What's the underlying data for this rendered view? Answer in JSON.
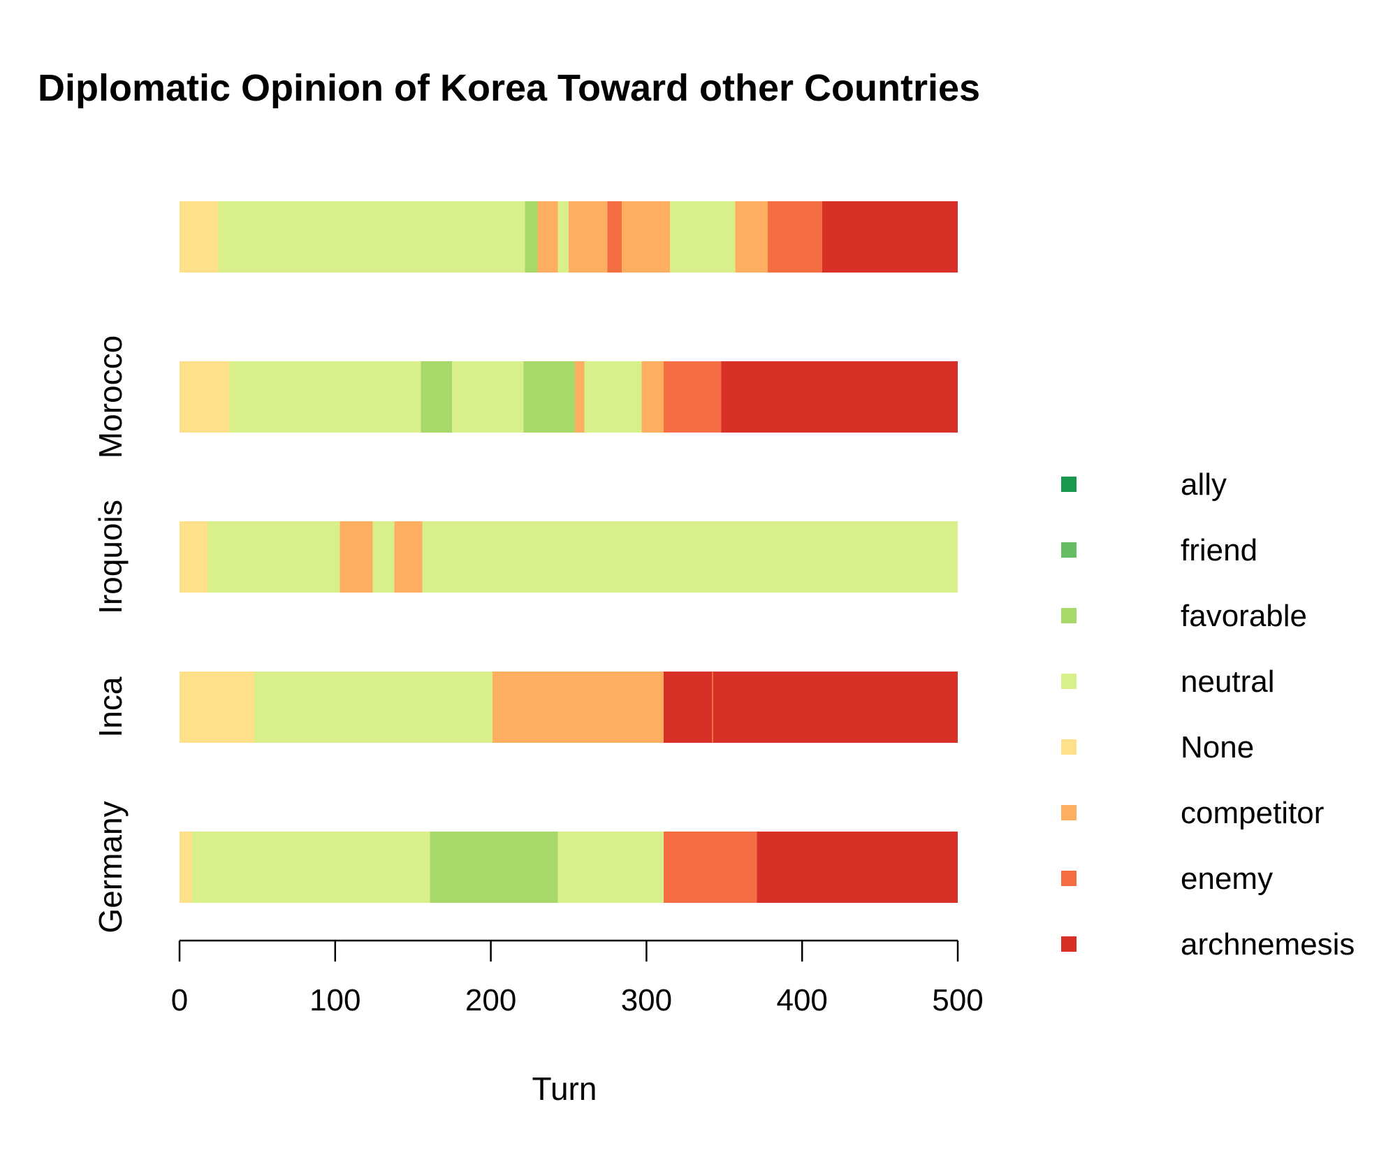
{
  "chart_data": {
    "type": "bar",
    "orientation": "horizontal",
    "stacked": true,
    "title": "Diplomatic Opinion of Korea Toward other Countries",
    "xlabel": "Turn",
    "ylabel": "",
    "xlim": [
      0,
      500
    ],
    "xticks": [
      "0",
      "100",
      "200",
      "300",
      "400",
      "500"
    ],
    "grid": false,
    "legend_position": "right",
    "states": [
      {
        "name": "ally",
        "color": "#1a9850"
      },
      {
        "name": "friend",
        "color": "#66bd63"
      },
      {
        "name": "favorable",
        "color": "#a6d96a"
      },
      {
        "name": "neutral",
        "color": "#d9ef8b"
      },
      {
        "name": "None",
        "color": "#fee08b"
      },
      {
        "name": "competitor",
        "color": "#fdae61"
      },
      {
        "name": "enemy",
        "color": "#f46d43"
      },
      {
        "name": "archnemesis",
        "color": "#d73027"
      }
    ],
    "categories": [
      "Germany",
      "Inca",
      "Iroquois",
      "Morocco",
      ""
    ],
    "bars": [
      {
        "label": "Germany",
        "segments": [
          {
            "state": "None",
            "start": 0,
            "end": 8
          },
          {
            "state": "neutral",
            "start": 8,
            "end": 161
          },
          {
            "state": "favorable",
            "start": 161,
            "end": 243
          },
          {
            "state": "neutral",
            "start": 243,
            "end": 311
          },
          {
            "state": "enemy",
            "start": 311,
            "end": 371
          },
          {
            "state": "archnemesis",
            "start": 371,
            "end": 500
          }
        ]
      },
      {
        "label": "Inca",
        "segments": [
          {
            "state": "None",
            "start": 0,
            "end": 48
          },
          {
            "state": "neutral",
            "start": 48,
            "end": 201
          },
          {
            "state": "competitor",
            "start": 201,
            "end": 311
          },
          {
            "state": "archnemesis",
            "start": 311,
            "end": 342
          },
          {
            "state": "enemy",
            "start": 342,
            "end": 343
          },
          {
            "state": "archnemesis",
            "start": 343,
            "end": 500
          }
        ]
      },
      {
        "label": "Iroquois",
        "segments": [
          {
            "state": "None",
            "start": 0,
            "end": 18
          },
          {
            "state": "neutral",
            "start": 18,
            "end": 103
          },
          {
            "state": "competitor",
            "start": 103,
            "end": 124
          },
          {
            "state": "neutral",
            "start": 124,
            "end": 138
          },
          {
            "state": "competitor",
            "start": 138,
            "end": 156
          },
          {
            "state": "neutral",
            "start": 156,
            "end": 500
          }
        ]
      },
      {
        "label": "Morocco",
        "segments": [
          {
            "state": "None",
            "start": 0,
            "end": 32
          },
          {
            "state": "neutral",
            "start": 32,
            "end": 155
          },
          {
            "state": "favorable",
            "start": 155,
            "end": 175
          },
          {
            "state": "neutral",
            "start": 175,
            "end": 221
          },
          {
            "state": "favorable",
            "start": 221,
            "end": 254
          },
          {
            "state": "competitor",
            "start": 254,
            "end": 260
          },
          {
            "state": "neutral",
            "start": 260,
            "end": 297
          },
          {
            "state": "competitor",
            "start": 297,
            "end": 311
          },
          {
            "state": "enemy",
            "start": 311,
            "end": 348
          },
          {
            "state": "archnemesis",
            "start": 348,
            "end": 500
          }
        ]
      },
      {
        "label": "",
        "segments": [
          {
            "state": "None",
            "start": 0,
            "end": 25
          },
          {
            "state": "neutral",
            "start": 25,
            "end": 222
          },
          {
            "state": "favorable",
            "start": 222,
            "end": 230
          },
          {
            "state": "competitor",
            "start": 230,
            "end": 243
          },
          {
            "state": "neutral",
            "start": 243,
            "end": 250
          },
          {
            "state": "competitor",
            "start": 250,
            "end": 275
          },
          {
            "state": "enemy",
            "start": 275,
            "end": 284
          },
          {
            "state": "competitor",
            "start": 284,
            "end": 315
          },
          {
            "state": "neutral",
            "start": 315,
            "end": 357
          },
          {
            "state": "competitor",
            "start": 357,
            "end": 378
          },
          {
            "state": "enemy",
            "start": 378,
            "end": 413
          },
          {
            "state": "archnemesis",
            "start": 413,
            "end": 500
          }
        ]
      }
    ]
  }
}
